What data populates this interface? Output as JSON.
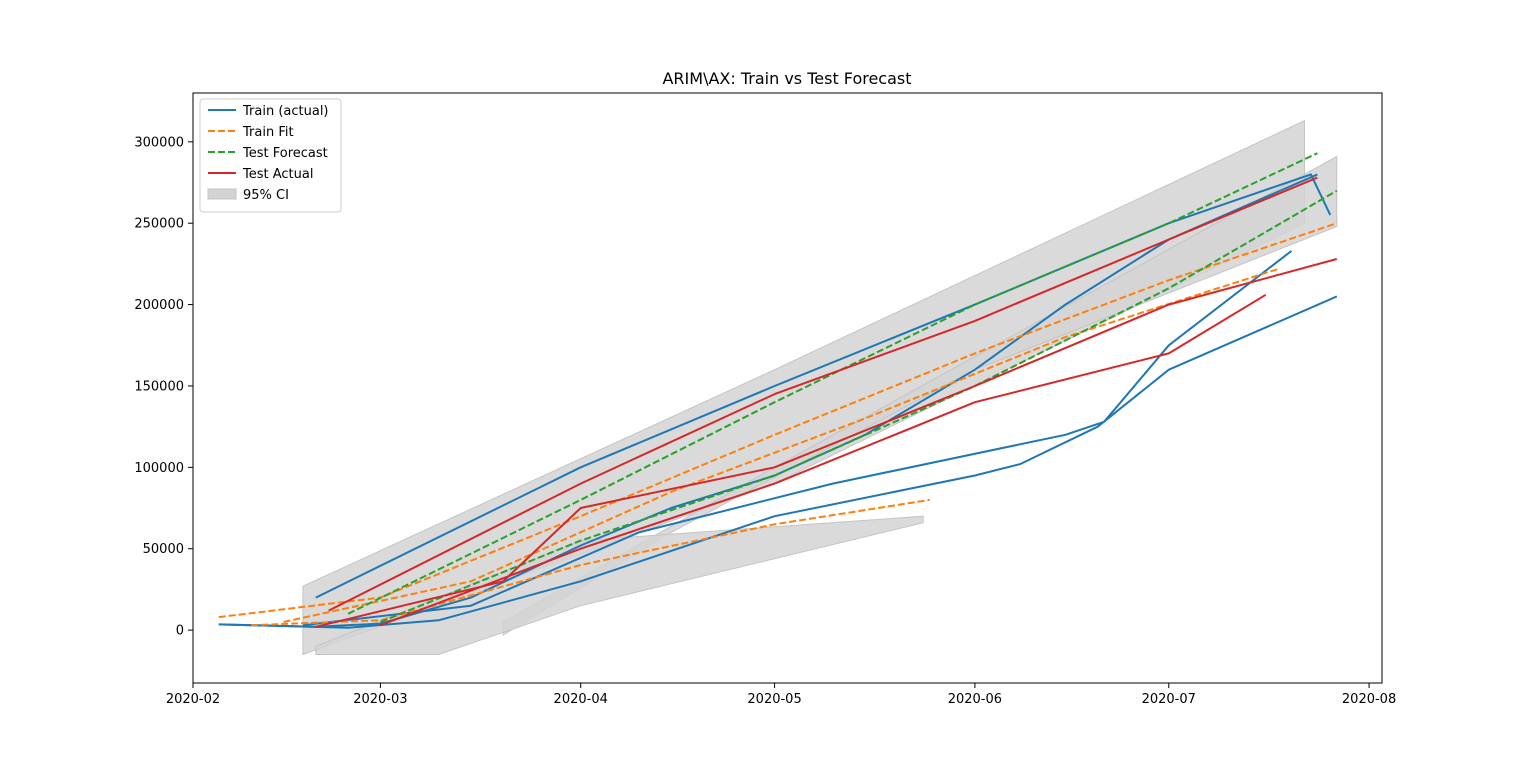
{
  "chart_data": {
    "type": "line",
    "title": "ARIM\\AX: Train vs Test Forecast",
    "xlabel": "",
    "ylabel": "",
    "xlim": [
      "2020-02-01",
      "2020-08-03"
    ],
    "ylim": [
      -32500,
      330000
    ],
    "x_ticks": [
      "2020-02",
      "2020-03",
      "2020-04",
      "2020-05",
      "2020-06",
      "2020-07",
      "2020-08"
    ],
    "y_ticks": [
      0,
      50000,
      100000,
      150000,
      200000,
      250000,
      300000
    ],
    "grid": false,
    "legend_position": "top-left",
    "legend": [
      {
        "label": "Train (actual)",
        "color": "#1f77b4",
        "style": "solid"
      },
      {
        "label": "Train Fit",
        "color": "#ff7f0e",
        "style": "dashed"
      },
      {
        "label": "Test Forecast",
        "color": "#2ca02c",
        "style": "dashed"
      },
      {
        "label": "Test Actual",
        "color": "#d62728",
        "style": "solid"
      },
      {
        "label": "95% CI",
        "color": "#d3d3d3",
        "style": "patch"
      }
    ],
    "series": [
      {
        "name": "Train (actual)",
        "color": "#1f77b4",
        "style": "solid",
        "points": [
          [
            "2020-02-05",
            3500
          ],
          [
            "2020-02-20",
            2000
          ],
          [
            "2020-03-01",
            4000
          ],
          [
            "2020-03-15",
            20000
          ],
          [
            "2020-04-01",
            52000
          ],
          [
            "2020-04-15",
            75000
          ],
          [
            "2020-05-01",
            95000
          ],
          [
            "2020-05-15",
            120000
          ],
          [
            "2020-06-01",
            160000
          ],
          [
            "2020-06-15",
            200000
          ],
          [
            "2020-07-01",
            240000
          ],
          [
            "2020-07-24",
            280000
          ]
        ]
      },
      {
        "name": "Train (actual)",
        "color": "#1f77b4",
        "style": "solid",
        "points": [
          [
            "2020-02-05",
            3500
          ],
          [
            "2020-02-25",
            1500
          ],
          [
            "2020-03-10",
            6000
          ],
          [
            "2020-04-01",
            30000
          ],
          [
            "2020-05-01",
            70000
          ],
          [
            "2020-06-01",
            95000
          ],
          [
            "2020-06-08",
            102000
          ],
          [
            "2020-06-20",
            125000
          ],
          [
            "2020-07-01",
            160000
          ],
          [
            "2020-07-27",
            205000
          ]
        ]
      },
      {
        "name": "Train (actual)",
        "color": "#1f77b4",
        "style": "solid",
        "points": [
          [
            "2020-02-20",
            20000
          ],
          [
            "2020-04-01",
            100000
          ],
          [
            "2020-05-01",
            150000
          ],
          [
            "2020-06-01",
            200000
          ],
          [
            "2020-07-01",
            250000
          ],
          [
            "2020-07-23",
            280000
          ],
          [
            "2020-07-26",
            255000
          ]
        ]
      },
      {
        "name": "Train (actual)",
        "color": "#1f77b4",
        "style": "solid",
        "points": [
          [
            "2020-02-18",
            3000
          ],
          [
            "2020-03-15",
            15000
          ],
          [
            "2020-04-10",
            60000
          ],
          [
            "2020-05-10",
            90000
          ],
          [
            "2020-06-15",
            120000
          ],
          [
            "2020-06-21",
            128000
          ],
          [
            "2020-07-01",
            175000
          ],
          [
            "2020-07-20",
            233000
          ]
        ]
      },
      {
        "name": "Train Fit",
        "color": "#ff7f0e",
        "style": "dashed",
        "points": [
          [
            "2020-02-05",
            8000
          ],
          [
            "2020-03-01",
            20000
          ],
          [
            "2020-04-01",
            70000
          ],
          [
            "2020-05-01",
            120000
          ],
          [
            "2020-06-01",
            170000
          ],
          [
            "2020-07-01",
            215000
          ],
          [
            "2020-07-27",
            250000
          ]
        ]
      },
      {
        "name": "Train Fit",
        "color": "#ff7f0e",
        "style": "dashed",
        "points": [
          [
            "2020-02-10",
            3000
          ],
          [
            "2020-03-01",
            6000
          ],
          [
            "2020-04-01",
            40000
          ],
          [
            "2020-05-01",
            65000
          ],
          [
            "2020-05-25",
            80000
          ]
        ]
      },
      {
        "name": "Train Fit",
        "color": "#ff7f0e",
        "style": "dashed",
        "points": [
          [
            "2020-02-15",
            5000
          ],
          [
            "2020-03-15",
            30000
          ],
          [
            "2020-04-15",
            85000
          ],
          [
            "2020-05-15",
            130000
          ],
          [
            "2020-06-15",
            180000
          ],
          [
            "2020-07-18",
            222000
          ]
        ]
      },
      {
        "name": "Test Forecast",
        "color": "#2ca02c",
        "style": "dashed",
        "points": [
          [
            "2020-02-25",
            10000
          ],
          [
            "2020-04-01",
            80000
          ],
          [
            "2020-05-01",
            140000
          ],
          [
            "2020-06-01",
            200000
          ],
          [
            "2020-07-01",
            250000
          ],
          [
            "2020-07-24",
            293000
          ]
        ]
      },
      {
        "name": "Test Forecast",
        "color": "#2ca02c",
        "style": "dashed",
        "points": [
          [
            "2020-03-01",
            5000
          ],
          [
            "2020-04-01",
            55000
          ],
          [
            "2020-05-01",
            95000
          ],
          [
            "2020-06-01",
            150000
          ],
          [
            "2020-07-01",
            210000
          ],
          [
            "2020-07-27",
            270000
          ]
        ]
      },
      {
        "name": "Test Actual",
        "color": "#d62728",
        "style": "solid",
        "points": [
          [
            "2020-02-20",
            2000
          ],
          [
            "2020-03-20",
            30000
          ],
          [
            "2020-04-01",
            75000
          ],
          [
            "2020-05-01",
            100000
          ],
          [
            "2020-06-01",
            150000
          ],
          [
            "2020-07-01",
            200000
          ],
          [
            "2020-07-27",
            228000
          ]
        ]
      },
      {
        "name": "Test Actual",
        "color": "#d62728",
        "style": "solid",
        "points": [
          [
            "2020-02-22",
            12000
          ],
          [
            "2020-04-01",
            90000
          ],
          [
            "2020-05-01",
            145000
          ],
          [
            "2020-06-01",
            190000
          ],
          [
            "2020-07-01",
            240000
          ],
          [
            "2020-07-24",
            278000
          ]
        ]
      },
      {
        "name": "Test Actual",
        "color": "#d62728",
        "style": "solid",
        "points": [
          [
            "2020-03-01",
            3000
          ],
          [
            "2020-04-01",
            50000
          ],
          [
            "2020-05-01",
            90000
          ],
          [
            "2020-06-01",
            140000
          ],
          [
            "2020-07-01",
            170000
          ],
          [
            "2020-07-16",
            206000
          ]
        ]
      }
    ],
    "ci_bands": [
      {
        "color": "#d3d3d3",
        "upper": [
          [
            "2020-02-18",
            27000
          ],
          [
            "2020-05-01",
            160000
          ],
          [
            "2020-07-22",
            313000
          ]
        ],
        "lower": [
          [
            "2020-07-22",
            250000
          ],
          [
            "2020-05-01",
            90000
          ],
          [
            "2020-02-18",
            -15000
          ]
        ]
      },
      {
        "color": "#d3d3d3",
        "upper": [
          [
            "2020-03-20",
            5000
          ],
          [
            "2020-05-01",
            100000
          ],
          [
            "2020-07-27",
            291000
          ]
        ],
        "lower": [
          [
            "2020-07-27",
            248000
          ],
          [
            "2020-06-01",
            160000
          ],
          [
            "2020-04-15",
            60000
          ],
          [
            "2020-03-20",
            -3000
          ]
        ]
      },
      {
        "color": "#d3d3d3",
        "upper": [
          [
            "2020-02-20",
            -10000
          ],
          [
            "2020-04-01",
            55000
          ],
          [
            "2020-05-24",
            70000
          ]
        ],
        "lower": [
          [
            "2020-05-24",
            66000
          ],
          [
            "2020-04-01",
            15000
          ],
          [
            "2020-03-10",
            -15000
          ],
          [
            "2020-02-20",
            -15000
          ]
        ]
      }
    ]
  }
}
